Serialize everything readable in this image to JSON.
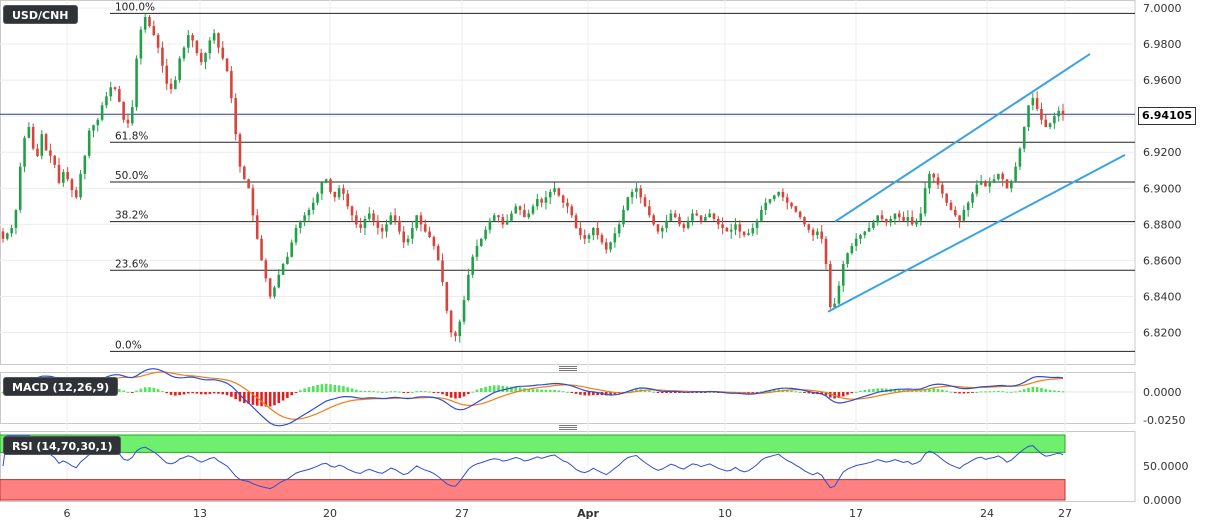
{
  "symbol": "USD/CNH",
  "current_price": "6.94105",
  "indicators": {
    "macd": {
      "label": "MACD (12,26,9)"
    },
    "rsi": {
      "label": "RSI (14,70,30,1)"
    }
  },
  "colors": {
    "bullish": "#22a049",
    "bearish": "#d8443c",
    "channel": "#3ba3e5",
    "macd_line": "#2f4fd0",
    "signal_line": "#f07e16",
    "hist_pos": "#4fe35a",
    "hist_neg": "#e41e1e",
    "rsi_line": "#2f4fd0",
    "overbought_zone": "#6ef06e",
    "oversold_zone": "#ff8080"
  },
  "chart_data": [
    {
      "type": "candlestick",
      "title": "USD/CNH",
      "x_ticks": [
        "6",
        "13",
        "20",
        "27",
        "Apr",
        "10",
        "17",
        "24",
        "27"
      ],
      "y_ticks": [
        "7.0000",
        "6.9800",
        "6.9600",
        "6.9400",
        "6.9200",
        "6.9000",
        "6.8800",
        "6.8600",
        "6.8400",
        "6.8200"
      ],
      "ylim": [
        6.806,
        7.004
      ],
      "current_price": 6.94105,
      "fibonacci": [
        {
          "label": "100.0%",
          "value": 6.997
        },
        {
          "label": "61.8%",
          "value": 6.9255
        },
        {
          "label": "50.0%",
          "value": 6.9035
        },
        {
          "label": "38.2%",
          "value": 6.8815
        },
        {
          "label": "23.6%",
          "value": 6.8545
        },
        {
          "label": "0.0%",
          "value": 6.8095
        }
      ],
      "ohlc_path_closes": [
        6.872,
        6.875,
        6.878,
        6.888,
        6.912,
        6.928,
        6.934,
        6.922,
        6.918,
        6.93,
        6.921,
        6.918,
        6.913,
        6.903,
        6.909,
        6.905,
        6.899,
        6.895,
        6.908,
        6.918,
        6.932,
        6.935,
        6.938,
        6.946,
        6.951,
        6.956,
        6.955,
        6.948,
        6.938,
        6.936,
        6.945,
        6.972,
        6.988,
        6.995,
        6.99,
        6.985,
        6.978,
        6.968,
        6.958,
        6.955,
        6.96,
        6.972,
        6.978,
        6.985,
        6.982,
        6.975,
        6.97,
        6.975,
        6.982,
        6.986,
        6.978,
        6.972,
        6.965,
        6.95,
        6.93,
        6.912,
        6.905,
        6.9,
        6.885,
        6.872,
        6.86,
        6.85,
        6.84,
        6.845,
        6.852,
        6.858,
        6.862,
        6.87,
        6.878,
        6.882,
        6.885,
        6.888,
        6.892,
        6.897,
        6.903,
        6.905,
        6.898,
        6.895,
        6.9,
        6.897,
        6.89,
        6.885,
        6.88,
        6.878,
        6.883,
        6.886,
        6.882,
        6.878,
        6.876,
        6.88,
        6.885,
        6.882,
        6.876,
        6.87,
        6.872,
        6.878,
        6.885,
        6.88,
        6.876,
        6.873,
        6.868,
        6.86,
        6.848,
        6.832,
        6.82,
        6.818,
        6.826,
        6.838,
        6.852,
        6.862,
        6.868,
        6.872,
        6.877,
        6.882,
        6.885,
        6.884,
        6.88,
        6.882,
        6.886,
        6.89,
        6.888,
        6.884,
        6.886,
        6.89,
        6.894,
        6.892,
        6.895,
        6.898,
        6.9,
        6.896,
        6.892,
        6.89,
        6.885,
        6.878,
        6.874,
        6.872,
        6.874,
        6.878,
        6.874,
        6.87,
        6.866,
        6.87,
        6.875,
        6.88,
        6.888,
        6.895,
        6.898,
        6.9,
        6.895,
        6.89,
        6.885,
        6.88,
        6.876,
        6.878,
        6.882,
        6.886,
        6.884,
        6.88,
        6.878,
        6.882,
        6.886,
        6.885,
        6.882,
        6.884,
        6.886,
        6.883,
        6.88,
        6.878,
        6.876,
        6.877,
        6.88,
        6.876,
        6.874,
        6.875,
        6.878,
        6.882,
        6.888,
        6.892,
        6.894,
        6.896,
        6.898,
        6.895,
        6.892,
        6.89,
        6.887,
        6.884,
        6.88,
        6.877,
        6.874,
        6.876,
        6.872,
        6.858,
        6.834,
        6.836,
        6.846,
        6.858,
        6.864,
        6.868,
        6.872,
        6.874,
        6.876,
        6.878,
        6.881,
        6.885,
        6.883,
        6.881,
        6.883,
        6.886,
        6.884,
        6.882,
        6.884,
        6.88,
        6.882,
        6.886,
        6.9,
        6.908,
        6.906,
        6.902,
        6.897,
        6.892,
        6.888,
        6.885,
        6.882,
        6.888,
        6.892,
        6.897,
        6.902,
        6.904,
        6.901,
        6.903,
        6.905,
        6.908,
        6.905,
        6.9,
        6.904,
        6.912,
        6.922,
        6.934,
        6.946,
        6.95,
        6.944,
        6.938,
        6.934,
        6.936,
        6.94,
        6.943,
        6.941
      ],
      "macd_label": "MACD (12,26,9)",
      "macd_y_ticks": [
        "0.0000",
        "-0.0250"
      ],
      "rsi_label": "RSI (14,70,30,1)",
      "rsi_y_ticks": [
        "50.0000",
        "0.0000"
      ],
      "rsi_levels": [
        70,
        30
      ],
      "trend_channel": {
        "upper": [
          [
            "Apr 14",
            6.8815
          ],
          [
            "Apr 28",
            6.9745
          ]
        ],
        "lower": [
          [
            "Apr 14",
            6.8315
          ],
          [
            "Apr 28",
            6.9185
          ]
        ]
      },
      "grid": true
    }
  ]
}
